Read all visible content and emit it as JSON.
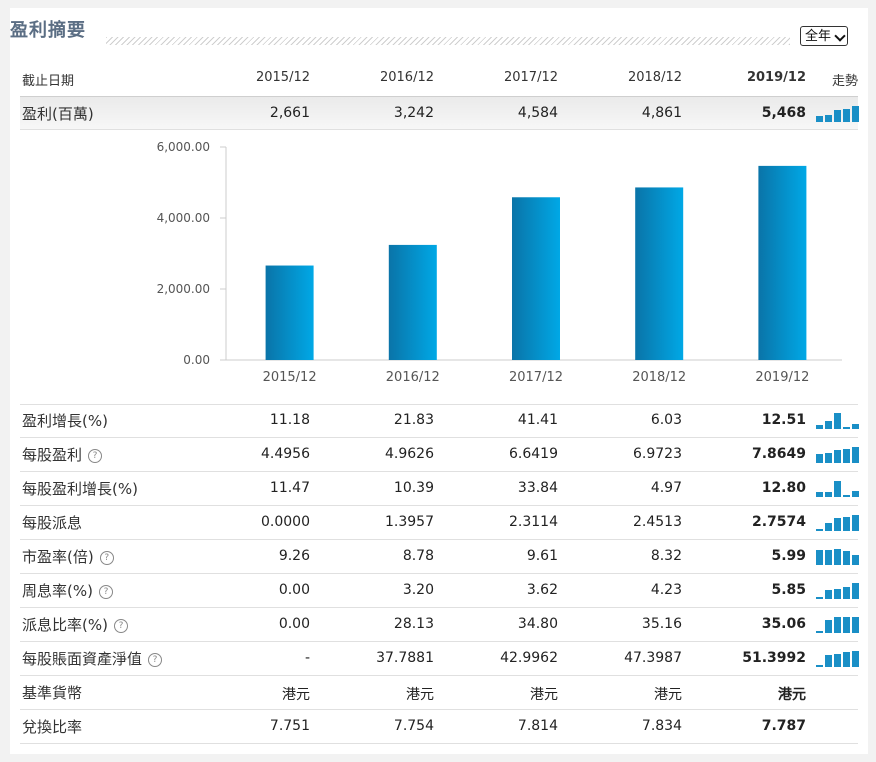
{
  "title": "盈利摘要",
  "period_select": "全年",
  "header": {
    "label": "截止日期",
    "periods": [
      "2015/12",
      "2016/12",
      "2017/12",
      "2018/12",
      "2019/12"
    ],
    "trend": "走勢"
  },
  "rows": [
    {
      "key": "profit",
      "label": "盈利(百萬)",
      "help": false,
      "values": [
        "2,661",
        "3,242",
        "4,584",
        "4,861",
        "5,468"
      ],
      "spark": [
        0.35,
        0.45,
        0.75,
        0.82,
        1.0
      ]
    },
    {
      "key": "profit_growth",
      "label": "盈利增長(%)",
      "help": false,
      "values": [
        "11.18",
        "21.83",
        "41.41",
        "6.03",
        "12.51"
      ],
      "spark": [
        0.27,
        0.53,
        1.0,
        0.15,
        0.3
      ]
    },
    {
      "key": "eps",
      "label": "每股盈利",
      "help": true,
      "values": [
        "4.4956",
        "4.9626",
        "6.6419",
        "6.9723",
        "7.8649"
      ],
      "spark": [
        0.57,
        0.63,
        0.84,
        0.89,
        1.0
      ]
    },
    {
      "key": "eps_growth",
      "label": "每股盈利增長(%)",
      "help": false,
      "values": [
        "11.47",
        "10.39",
        "33.84",
        "4.97",
        "12.80"
      ],
      "spark": [
        0.34,
        0.31,
        1.0,
        0.15,
        0.38
      ]
    },
    {
      "key": "dps",
      "label": "每股派息",
      "help": false,
      "values": [
        "0.0000",
        "1.3957",
        "2.3114",
        "2.4513",
        "2.7574"
      ],
      "spark": [
        0.04,
        0.51,
        0.84,
        0.89,
        1.0
      ]
    },
    {
      "key": "pe",
      "label": "市盈率(倍)",
      "help": true,
      "values": [
        "9.26",
        "8.78",
        "9.61",
        "8.32",
        "5.99"
      ],
      "spark": [
        0.96,
        0.91,
        1.0,
        0.87,
        0.62
      ]
    },
    {
      "key": "yield",
      "label": "周息率(%)",
      "help": true,
      "values": [
        "0.00",
        "3.20",
        "3.62",
        "4.23",
        "5.85"
      ],
      "spark": [
        0.04,
        0.55,
        0.62,
        0.72,
        1.0
      ]
    },
    {
      "key": "payout",
      "label": "派息比率(%)",
      "help": true,
      "values": [
        "0.00",
        "28.13",
        "34.80",
        "35.16",
        "35.06"
      ],
      "spark": [
        0.04,
        0.8,
        0.99,
        1.0,
        1.0
      ]
    },
    {
      "key": "bvps",
      "label": "每股賬面資產淨值",
      "help": true,
      "values": [
        "-",
        "37.7881",
        "42.9962",
        "47.3987",
        "51.3992"
      ],
      "spark": [
        0.04,
        0.74,
        0.84,
        0.92,
        1.0
      ]
    },
    {
      "key": "currency",
      "label": "基準貨幣",
      "help": false,
      "values": [
        "港元",
        "港元",
        "港元",
        "港元",
        "港元"
      ],
      "spark": null
    },
    {
      "key": "fx",
      "label": "兌換比率",
      "help": false,
      "values": [
        "7.751",
        "7.754",
        "7.814",
        "7.834",
        "7.787"
      ],
      "spark": null
    }
  ],
  "chart_data": {
    "type": "bar",
    "categories": [
      "2015/12",
      "2016/12",
      "2017/12",
      "2018/12",
      "2019/12"
    ],
    "values": [
      2661,
      3242,
      4584,
      4861,
      5468
    ],
    "ylim": [
      0,
      6000
    ],
    "yticks": [
      "0.00",
      "2,000.00",
      "4,000.00",
      "6,000.00"
    ],
    "ytick_values": [
      0,
      2000,
      4000,
      6000
    ],
    "title": "",
    "xlabel": "",
    "ylabel": "",
    "grid": false,
    "bar_color_top": "#00a8e6",
    "bar_color_bottom": "#0a74a8"
  },
  "colors": {
    "spark": "#1a8fc6",
    "title": "#5b6e84"
  }
}
